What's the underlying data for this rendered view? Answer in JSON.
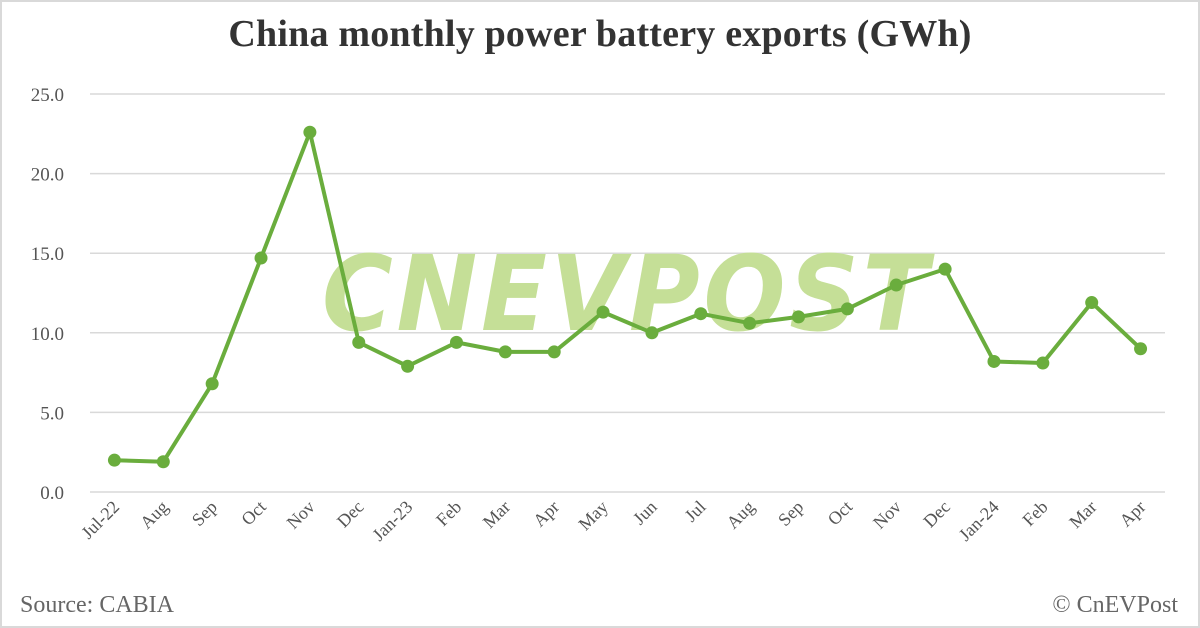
{
  "title": "China monthly power battery exports (GWh)",
  "footer": {
    "source": "Source: CABIA",
    "copyright": "© CnEVPost"
  },
  "watermark": "CNEVPOST",
  "colors": {
    "line": "#6aad3d",
    "gridline": "#d9d9d9",
    "watermark": "#c5df97",
    "title": "#333333",
    "text": "#555555"
  },
  "chart_data": {
    "type": "line",
    "title": "China monthly power battery exports (GWh)",
    "xlabel": "",
    "ylabel": "",
    "ylim": [
      0,
      25
    ],
    "yticks": [
      "0.0",
      "5.0",
      "10.0",
      "15.0",
      "20.0",
      "25.0"
    ],
    "grid": true,
    "legend": "none",
    "categories": [
      "Jul-22",
      "Aug",
      "Sep",
      "Oct",
      "Nov",
      "Dec",
      "Jan-23",
      "Feb",
      "Mar",
      "Apr",
      "May",
      "Jun",
      "Jul",
      "Aug",
      "Sep",
      "Oct",
      "Nov",
      "Dec",
      "Jan-24",
      "Feb",
      "Mar",
      "Apr"
    ],
    "series": [
      {
        "name": "Power battery exports (GWh)",
        "values": [
          2.0,
          1.9,
          6.8,
          14.7,
          22.6,
          9.4,
          7.9,
          9.4,
          8.8,
          8.8,
          11.3,
          10.0,
          11.2,
          10.6,
          11.0,
          11.5,
          13.0,
          14.0,
          8.2,
          8.1,
          11.9,
          9.0
        ]
      }
    ],
    "annotations": [
      "Source: CABIA",
      "© CnEVPost"
    ]
  }
}
